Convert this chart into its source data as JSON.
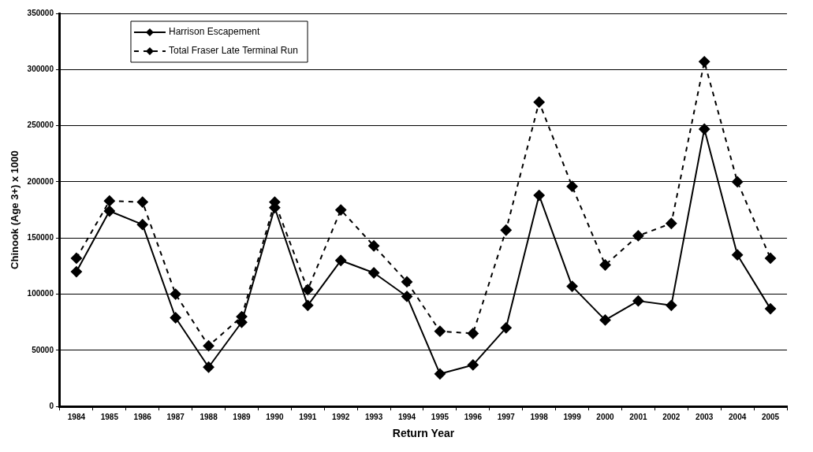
{
  "chart_data": {
    "type": "line",
    "xlabel": "Return Year",
    "ylabel": "Chinook (Age 3+) x 1000",
    "categories": [
      "1984",
      "1985",
      "1986",
      "1987",
      "1988",
      "1989",
      "1990",
      "1991",
      "1992",
      "1993",
      "1994",
      "1995",
      "1996",
      "1997",
      "1998",
      "1999",
      "2000",
      "2001",
      "2002",
      "2003",
      "2004",
      "2005"
    ],
    "series": [
      {
        "name": "Harrison Escapement",
        "color": "#000000",
        "line_style": "solid",
        "values": [
          120000,
          174000,
          162000,
          79000,
          35000,
          75000,
          177000,
          90000,
          130000,
          119000,
          98000,
          29000,
          37000,
          70000,
          188000,
          107000,
          77000,
          94000,
          90000,
          247000,
          135000,
          87000
        ]
      },
      {
        "name": "Total Fraser Late Terminal Run",
        "color": "#000000",
        "line_style": "dashed",
        "values": [
          132000,
          183000,
          182000,
          100000,
          54000,
          80000,
          182000,
          104000,
          175000,
          143000,
          111000,
          67000,
          65000,
          157000,
          271000,
          196000,
          126000,
          152000,
          163000,
          307000,
          200000,
          132000
        ]
      }
    ],
    "ylim": [
      0,
      350000
    ],
    "yticks": [
      0,
      50000,
      100000,
      150000,
      200000,
      250000,
      300000,
      350000
    ],
    "grid": "y",
    "legend": "top left",
    "marker": "diamond"
  }
}
